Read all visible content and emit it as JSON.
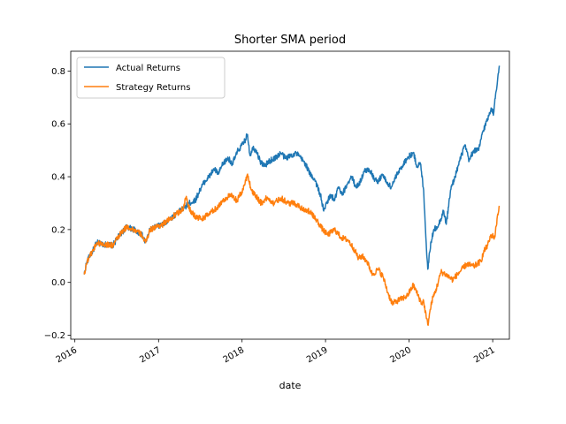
{
  "chart_data": {
    "type": "line",
    "title": "Shorter SMA period",
    "xlabel": "date",
    "ylabel": "",
    "x_type": "date",
    "xlim": [
      "2015-12-14",
      "2021-03-15"
    ],
    "ylim": [
      -0.215,
      0.875
    ],
    "xticks": [
      {
        "date": "2016-01-01",
        "label": "2016"
      },
      {
        "date": "2017-01-01",
        "label": "2017"
      },
      {
        "date": "2018-01-01",
        "label": "2018"
      },
      {
        "date": "2019-01-01",
        "label": "2019"
      },
      {
        "date": "2020-01-01",
        "label": "2020"
      },
      {
        "date": "2021-01-01",
        "label": "2021"
      }
    ],
    "yticks": [
      {
        "value": -0.2,
        "label": "−0.2"
      },
      {
        "value": 0.0,
        "label": "0.0"
      },
      {
        "value": 0.2,
        "label": "0.2"
      },
      {
        "value": 0.4,
        "label": "0.4"
      },
      {
        "value": 0.6,
        "label": "0.6"
      },
      {
        "value": 0.8,
        "label": "0.8"
      }
    ],
    "grid": false,
    "legend_position": "top-left",
    "series": [
      {
        "name": "Actual Returns",
        "color": "#1f77b4",
        "points": [
          [
            "2016-02-11",
            0.03
          ],
          [
            "2016-02-20",
            0.07
          ],
          [
            "2016-03-05",
            0.1
          ],
          [
            "2016-03-20",
            0.12
          ],
          [
            "2016-04-05",
            0.15
          ],
          [
            "2016-05-01",
            0.145
          ],
          [
            "2016-06-15",
            0.14
          ],
          [
            "2016-07-15",
            0.18
          ],
          [
            "2016-08-15",
            0.21
          ],
          [
            "2016-09-15",
            0.2
          ],
          [
            "2016-10-20",
            0.18
          ],
          [
            "2016-11-05",
            0.15
          ],
          [
            "2016-11-25",
            0.2
          ],
          [
            "2016-12-20",
            0.21
          ],
          [
            "2017-01-20",
            0.22
          ],
          [
            "2017-02-20",
            0.24
          ],
          [
            "2017-03-20",
            0.26
          ],
          [
            "2017-04-20",
            0.28
          ],
          [
            "2017-05-15",
            0.3
          ],
          [
            "2017-06-10",
            0.31
          ],
          [
            "2017-07-01",
            0.35
          ],
          [
            "2017-07-20",
            0.38
          ],
          [
            "2017-08-10",
            0.4
          ],
          [
            "2017-09-01",
            0.43
          ],
          [
            "2017-09-20",
            0.41
          ],
          [
            "2017-10-10",
            0.45
          ],
          [
            "2017-11-01",
            0.47
          ],
          [
            "2017-11-20",
            0.45
          ],
          [
            "2017-12-15",
            0.5
          ],
          [
            "2018-01-10",
            0.53
          ],
          [
            "2018-01-25",
            0.56
          ],
          [
            "2018-02-05",
            0.48
          ],
          [
            "2018-02-15",
            0.51
          ],
          [
            "2018-03-05",
            0.5
          ],
          [
            "2018-03-20",
            0.46
          ],
          [
            "2018-04-10",
            0.44
          ],
          [
            "2018-05-01",
            0.46
          ],
          [
            "2018-05-25",
            0.47
          ],
          [
            "2018-06-20",
            0.49
          ],
          [
            "2018-07-10",
            0.47
          ],
          [
            "2018-08-01",
            0.48
          ],
          [
            "2018-08-25",
            0.49
          ],
          [
            "2018-09-15",
            0.47
          ],
          [
            "2018-10-05",
            0.45
          ],
          [
            "2018-10-25",
            0.41
          ],
          [
            "2018-11-15",
            0.39
          ],
          [
            "2018-12-10",
            0.33
          ],
          [
            "2018-12-24",
            0.27
          ],
          [
            "2019-01-10",
            0.31
          ],
          [
            "2019-01-25",
            0.33
          ],
          [
            "2019-02-10",
            0.31
          ],
          [
            "2019-02-25",
            0.36
          ],
          [
            "2019-03-15",
            0.33
          ],
          [
            "2019-04-10",
            0.38
          ],
          [
            "2019-04-25",
            0.4
          ],
          [
            "2019-05-15",
            0.36
          ],
          [
            "2019-06-01",
            0.38
          ],
          [
            "2019-06-20",
            0.42
          ],
          [
            "2019-07-10",
            0.43
          ],
          [
            "2019-08-05",
            0.39
          ],
          [
            "2019-08-20",
            0.38
          ],
          [
            "2019-09-05",
            0.41
          ],
          [
            "2019-09-25",
            0.38
          ],
          [
            "2019-10-15",
            0.36
          ],
          [
            "2019-11-05",
            0.4
          ],
          [
            "2019-11-25",
            0.43
          ],
          [
            "2019-12-15",
            0.46
          ],
          [
            "2020-01-05",
            0.48
          ],
          [
            "2020-01-20",
            0.49
          ],
          [
            "2020-02-05",
            0.44
          ],
          [
            "2020-02-20",
            0.45
          ],
          [
            "2020-03-05",
            0.35
          ],
          [
            "2020-03-16",
            0.15
          ],
          [
            "2020-03-23",
            0.05
          ],
          [
            "2020-04-05",
            0.15
          ],
          [
            "2020-04-20",
            0.2
          ],
          [
            "2020-05-10",
            0.22
          ],
          [
            "2020-06-01",
            0.27
          ],
          [
            "2020-06-12",
            0.22
          ],
          [
            "2020-07-01",
            0.35
          ],
          [
            "2020-07-20",
            0.4
          ],
          [
            "2020-08-10",
            0.46
          ],
          [
            "2020-09-01",
            0.52
          ],
          [
            "2020-09-20",
            0.46
          ],
          [
            "2020-10-10",
            0.5
          ],
          [
            "2020-11-01",
            0.5
          ],
          [
            "2020-11-15",
            0.56
          ],
          [
            "2020-12-10",
            0.62
          ],
          [
            "2020-12-25",
            0.66
          ],
          [
            "2021-01-05",
            0.64
          ],
          [
            "2021-01-15",
            0.72
          ],
          [
            "2021-01-25",
            0.79
          ],
          [
            "2021-01-30",
            0.82
          ]
        ]
      },
      {
        "name": "Strategy Returns",
        "color": "#ff7f0e",
        "points": [
          [
            "2016-02-11",
            0.03
          ],
          [
            "2016-02-20",
            0.07
          ],
          [
            "2016-03-05",
            0.1
          ],
          [
            "2016-03-20",
            0.12
          ],
          [
            "2016-04-05",
            0.15
          ],
          [
            "2016-05-01",
            0.145
          ],
          [
            "2016-06-15",
            0.14
          ],
          [
            "2016-07-15",
            0.18
          ],
          [
            "2016-08-15",
            0.21
          ],
          [
            "2016-09-15",
            0.2
          ],
          [
            "2016-10-20",
            0.18
          ],
          [
            "2016-11-05",
            0.15
          ],
          [
            "2016-11-25",
            0.2
          ],
          [
            "2016-12-20",
            0.21
          ],
          [
            "2017-01-20",
            0.22
          ],
          [
            "2017-02-20",
            0.24
          ],
          [
            "2017-03-20",
            0.26
          ],
          [
            "2017-04-20",
            0.28
          ],
          [
            "2017-05-01",
            0.32
          ],
          [
            "2017-05-20",
            0.27
          ],
          [
            "2017-06-10",
            0.25
          ],
          [
            "2017-07-10",
            0.24
          ],
          [
            "2017-08-10",
            0.26
          ],
          [
            "2017-09-10",
            0.28
          ],
          [
            "2017-10-10",
            0.31
          ],
          [
            "2017-11-10",
            0.33
          ],
          [
            "2017-12-10",
            0.31
          ],
          [
            "2018-01-05",
            0.35
          ],
          [
            "2018-01-25",
            0.41
          ],
          [
            "2018-02-10",
            0.35
          ],
          [
            "2018-03-01",
            0.33
          ],
          [
            "2018-03-25",
            0.3
          ],
          [
            "2018-04-20",
            0.32
          ],
          [
            "2018-05-20",
            0.3
          ],
          [
            "2018-06-20",
            0.32
          ],
          [
            "2018-07-20",
            0.3
          ],
          [
            "2018-08-20",
            0.3
          ],
          [
            "2018-09-20",
            0.28
          ],
          [
            "2018-10-20",
            0.27
          ],
          [
            "2018-11-20",
            0.24
          ],
          [
            "2018-12-20",
            0.2
          ],
          [
            "2019-01-10",
            0.18
          ],
          [
            "2019-02-10",
            0.2
          ],
          [
            "2019-03-10",
            0.17
          ],
          [
            "2019-04-10",
            0.16
          ],
          [
            "2019-05-10",
            0.12
          ],
          [
            "2019-05-25",
            0.09
          ],
          [
            "2019-06-10",
            0.1
          ],
          [
            "2019-07-01",
            0.08
          ],
          [
            "2019-07-25",
            0.03
          ],
          [
            "2019-08-20",
            0.05
          ],
          [
            "2019-09-10",
            0.02
          ],
          [
            "2019-10-01",
            -0.04
          ],
          [
            "2019-10-20",
            -0.08
          ],
          [
            "2019-11-10",
            -0.07
          ],
          [
            "2019-12-05",
            -0.06
          ],
          [
            "2019-12-25",
            -0.05
          ],
          [
            "2020-01-20",
            -0.01
          ],
          [
            "2020-02-10",
            -0.05
          ],
          [
            "2020-02-25",
            -0.08
          ],
          [
            "2020-03-05",
            -0.07
          ],
          [
            "2020-03-16",
            -0.13
          ],
          [
            "2020-03-23",
            -0.16
          ],
          [
            "2020-04-10",
            -0.07
          ],
          [
            "2020-05-01",
            -0.02
          ],
          [
            "2020-05-20",
            0.04
          ],
          [
            "2020-06-10",
            0.03
          ],
          [
            "2020-07-10",
            0.01
          ],
          [
            "2020-08-10",
            0.04
          ],
          [
            "2020-09-10",
            0.07
          ],
          [
            "2020-10-10",
            0.06
          ],
          [
            "2020-11-10",
            0.08
          ],
          [
            "2020-11-25",
            0.12
          ],
          [
            "2020-12-10",
            0.14
          ],
          [
            "2020-12-25",
            0.18
          ],
          [
            "2021-01-10",
            0.17
          ],
          [
            "2021-01-20",
            0.24
          ],
          [
            "2021-01-30",
            0.29
          ]
        ]
      }
    ]
  }
}
